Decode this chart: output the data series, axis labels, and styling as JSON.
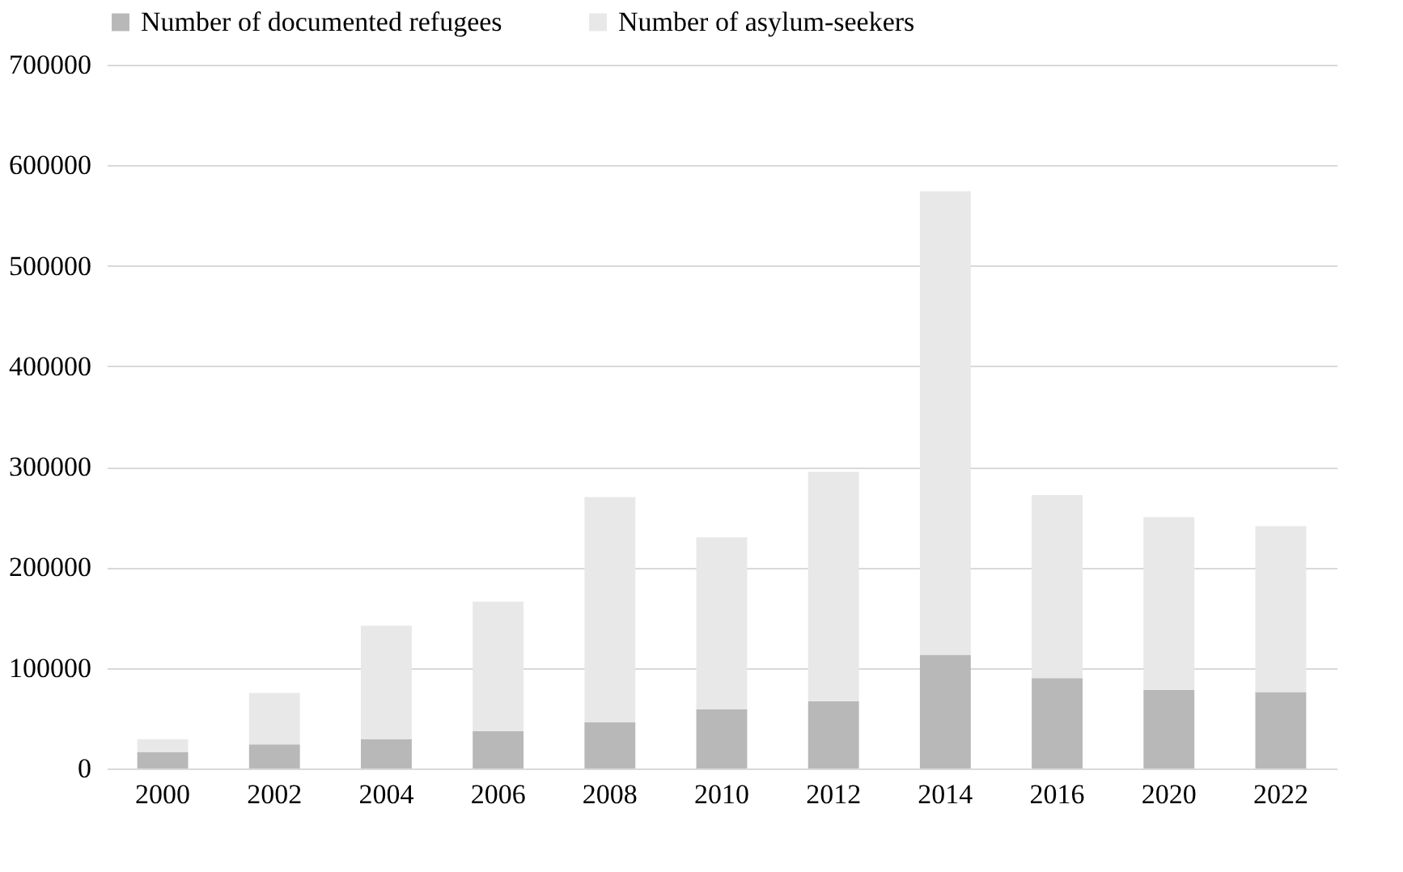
{
  "chart_data": {
    "type": "bar",
    "stacked": true,
    "categories": [
      "2000",
      "2002",
      "2004",
      "2006",
      "2008",
      "2010",
      "2012",
      "2014",
      "2016",
      "2020",
      "2022"
    ],
    "series": [
      {
        "name": "Number of documented refugees",
        "color": "#b8b8b8",
        "values": [
          16000,
          24000,
          29000,
          37000,
          46000,
          59000,
          67000,
          113000,
          90000,
          78000,
          76000
        ]
      },
      {
        "name": "Number of asylum-seekers",
        "color": "#e8e8e8",
        "values": [
          13000,
          51000,
          113000,
          129000,
          224000,
          171000,
          228000,
          461000,
          182000,
          172000,
          165000
        ]
      }
    ],
    "ylim": [
      0,
      700000
    ],
    "yticks": [
      0,
      100000,
      200000,
      300000,
      400000,
      500000,
      600000,
      700000
    ],
    "grid": "y",
    "legend": "top"
  }
}
